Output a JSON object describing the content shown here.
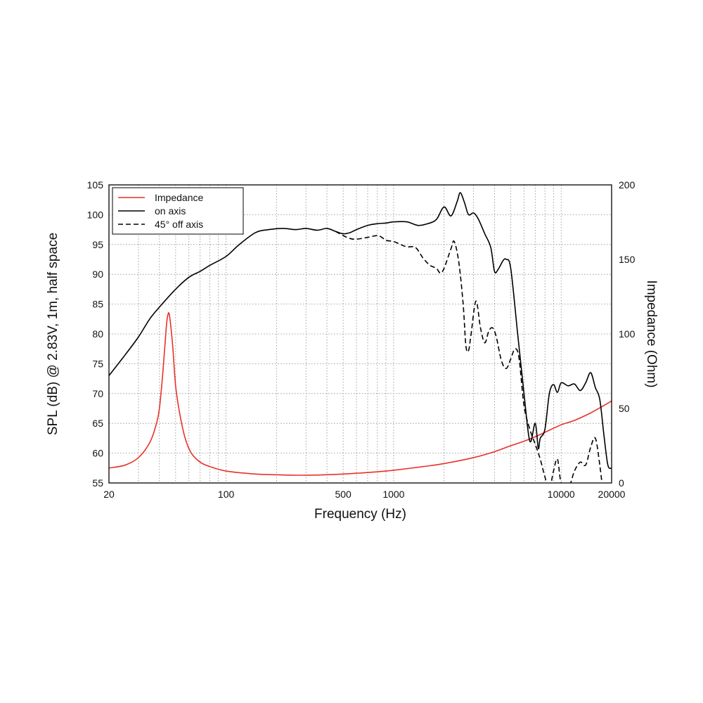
{
  "chart_data": {
    "type": "line",
    "xlabel": "Frequency (Hz)",
    "ylabel": "SPL (dB) @ 2.83V, 1m, half space",
    "y2label": "Impedance (Ohm)",
    "x_scale": "log",
    "xlim": [
      20,
      20000
    ],
    "ylim": [
      55,
      105
    ],
    "y2lim": [
      0,
      200
    ],
    "grid": true,
    "legend_position": "top-left",
    "x_ticks": [
      {
        "value": 20,
        "label": "20"
      },
      {
        "value": 100,
        "label": "100"
      },
      {
        "value": 500,
        "label": "500"
      },
      {
        "value": 1000,
        "label": "1000"
      },
      {
        "value": 10000,
        "label": "10000"
      },
      {
        "value": 20000,
        "label": "20000"
      }
    ],
    "y_ticks": [
      {
        "value": 55,
        "label": "55"
      },
      {
        "value": 60,
        "label": "60"
      },
      {
        "value": 65,
        "label": "65"
      },
      {
        "value": 70,
        "label": "70"
      },
      {
        "value": 75,
        "label": "75"
      },
      {
        "value": 80,
        "label": "80"
      },
      {
        "value": 85,
        "label": "85"
      },
      {
        "value": 90,
        "label": "90"
      },
      {
        "value": 95,
        "label": "95"
      },
      {
        "value": 100,
        "label": "100"
      },
      {
        "value": 105,
        "label": "105"
      }
    ],
    "y2_ticks": [
      {
        "value": 0,
        "label": "0"
      },
      {
        "value": 50,
        "label": "50"
      },
      {
        "value": 100,
        "label": "100"
      },
      {
        "value": 150,
        "label": "150"
      },
      {
        "value": 200,
        "label": "200"
      }
    ],
    "series": [
      {
        "name": "Impedance",
        "axis": "right",
        "color": "#e8312a",
        "style": "solid",
        "points": [
          [
            20,
            10
          ],
          [
            25,
            12
          ],
          [
            30,
            17
          ],
          [
            35,
            27
          ],
          [
            38,
            38
          ],
          [
            40,
            50
          ],
          [
            42,
            75
          ],
          [
            44,
            105
          ],
          [
            45,
            113
          ],
          [
            46,
            112
          ],
          [
            48,
            92
          ],
          [
            50,
            65
          ],
          [
            53,
            46
          ],
          [
            57,
            30
          ],
          [
            62,
            20
          ],
          [
            70,
            14
          ],
          [
            80,
            11
          ],
          [
            100,
            8
          ],
          [
            150,
            6
          ],
          [
            200,
            5.5
          ],
          [
            300,
            5.2
          ],
          [
            500,
            6
          ],
          [
            800,
            7.5
          ],
          [
            1000,
            8.5
          ],
          [
            1500,
            11
          ],
          [
            2000,
            13
          ],
          [
            3000,
            17
          ],
          [
            4000,
            21
          ],
          [
            5000,
            25
          ],
          [
            6000,
            28
          ],
          [
            7000,
            31
          ],
          [
            8000,
            34
          ],
          [
            10000,
            39
          ],
          [
            12000,
            42
          ],
          [
            15000,
            47
          ],
          [
            18000,
            52
          ],
          [
            20000,
            55
          ]
        ]
      },
      {
        "name": "on axis",
        "axis": "left",
        "color": "#000000",
        "style": "solid",
        "points": [
          [
            20,
            73
          ],
          [
            25,
            76.5
          ],
          [
            30,
            79.5
          ],
          [
            35,
            82.5
          ],
          [
            40,
            84.5
          ],
          [
            50,
            87.5
          ],
          [
            60,
            89.5
          ],
          [
            70,
            90.5
          ],
          [
            80,
            91.5
          ],
          [
            100,
            93
          ],
          [
            120,
            95
          ],
          [
            150,
            97
          ],
          [
            180,
            97.5
          ],
          [
            220,
            97.7
          ],
          [
            260,
            97.5
          ],
          [
            300,
            97.7
          ],
          [
            350,
            97.4
          ],
          [
            400,
            97.7
          ],
          [
            450,
            97.2
          ],
          [
            500,
            96.8
          ],
          [
            550,
            97
          ],
          [
            600,
            97.5
          ],
          [
            700,
            98.2
          ],
          [
            800,
            98.5
          ],
          [
            900,
            98.6
          ],
          [
            1000,
            98.8
          ],
          [
            1200,
            98.8
          ],
          [
            1400,
            98.2
          ],
          [
            1600,
            98.5
          ],
          [
            1800,
            99.2
          ],
          [
            2000,
            101.3
          ],
          [
            2200,
            99.8
          ],
          [
            2400,
            102.3
          ],
          [
            2500,
            103.7
          ],
          [
            2650,
            102
          ],
          [
            2800,
            100
          ],
          [
            3000,
            100.3
          ],
          [
            3200,
            99.3
          ],
          [
            3500,
            96.8
          ],
          [
            3800,
            94.5
          ],
          [
            4000,
            90.5
          ],
          [
            4200,
            90.8
          ],
          [
            4500,
            92.3
          ],
          [
            4700,
            92.5
          ],
          [
            5000,
            91
          ],
          [
            5500,
            80
          ],
          [
            6000,
            70
          ],
          [
            6500,
            62
          ],
          [
            7000,
            65
          ],
          [
            7300,
            60.8
          ],
          [
            7500,
            62.5
          ],
          [
            8000,
            64
          ],
          [
            8500,
            70
          ],
          [
            9000,
            71.5
          ],
          [
            9500,
            70.2
          ],
          [
            10000,
            71.8
          ],
          [
            11000,
            71.3
          ],
          [
            12000,
            71.6
          ],
          [
            13000,
            70.5
          ],
          [
            14000,
            71.8
          ],
          [
            15000,
            73.5
          ],
          [
            16000,
            71
          ],
          [
            17000,
            69
          ],
          [
            18000,
            63
          ],
          [
            19000,
            58
          ],
          [
            20000,
            57.5
          ]
        ]
      },
      {
        "name": "45° off axis",
        "axis": "left",
        "color": "#000000",
        "style": "dashed",
        "points": [
          [
            450,
            97.2
          ],
          [
            500,
            96.5
          ],
          [
            550,
            96
          ],
          [
            600,
            95.9
          ],
          [
            700,
            96.2
          ],
          [
            800,
            96.5
          ],
          [
            850,
            96.2
          ],
          [
            900,
            95.7
          ],
          [
            1000,
            95.5
          ],
          [
            1100,
            95
          ],
          [
            1200,
            94.6
          ],
          [
            1350,
            94.5
          ],
          [
            1500,
            92.7
          ],
          [
            1650,
            91.5
          ],
          [
            1800,
            91
          ],
          [
            1900,
            90.2
          ],
          [
            2000,
            91
          ],
          [
            2200,
            94.3
          ],
          [
            2300,
            95.5
          ],
          [
            2450,
            92
          ],
          [
            2600,
            85
          ],
          [
            2700,
            78
          ],
          [
            2800,
            77.2
          ],
          [
            2900,
            80
          ],
          [
            3100,
            85.5
          ],
          [
            3300,
            81
          ],
          [
            3500,
            78.5
          ],
          [
            3700,
            80.5
          ],
          [
            3900,
            81
          ],
          [
            4100,
            79.5
          ],
          [
            4400,
            75.5
          ],
          [
            4700,
            74.2
          ],
          [
            5000,
            75.8
          ],
          [
            5300,
            77.5
          ],
          [
            5600,
            76
          ],
          [
            6000,
            68
          ],
          [
            6500,
            64
          ],
          [
            7000,
            61.5
          ],
          [
            7500,
            59
          ],
          [
            8000,
            56
          ],
          [
            8500,
            54
          ],
          [
            9000,
            57
          ],
          [
            9500,
            59
          ],
          [
            10000,
            55
          ],
          [
            11000,
            54
          ],
          [
            12000,
            57
          ],
          [
            13000,
            58.5
          ],
          [
            14000,
            58
          ],
          [
            15000,
            61
          ],
          [
            16000,
            62.5
          ],
          [
            17000,
            58
          ],
          [
            18000,
            52
          ]
        ]
      }
    ]
  }
}
